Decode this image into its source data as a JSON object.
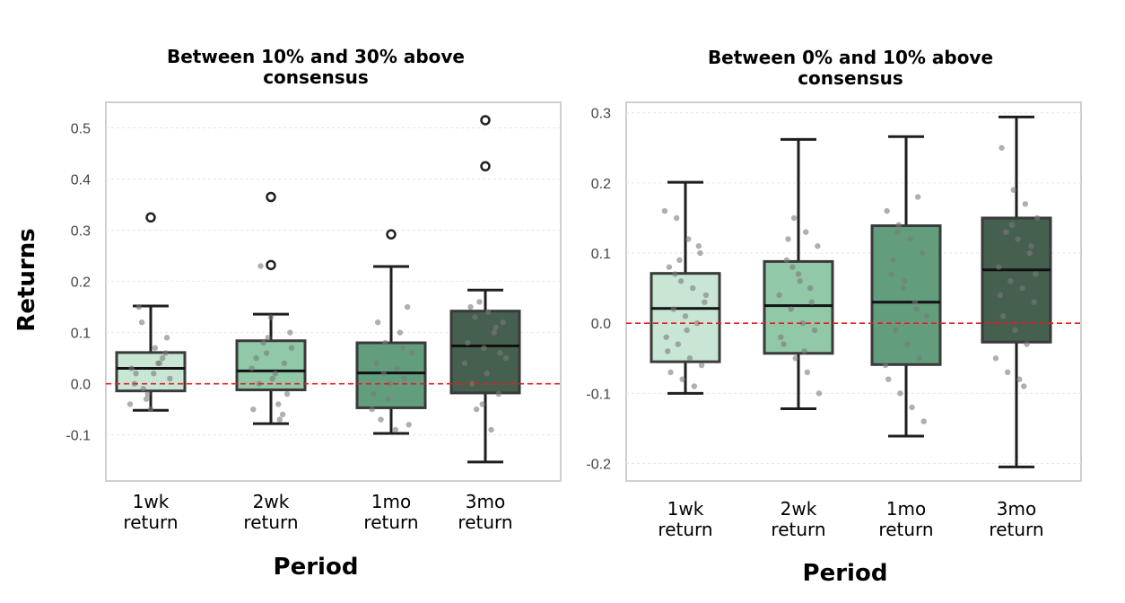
{
  "ylabel": "Returns",
  "chart_data": [
    {
      "type": "box",
      "title_lines": [
        "Between 10% and 30% above",
        "consensus"
      ],
      "xlabel": "Period",
      "ylabel": "Returns",
      "categories": [
        {
          "line1": "1wk",
          "line2": "return"
        },
        {
          "line1": "2wk",
          "line2": "return"
        },
        {
          "line1": "1mo",
          "line2": "return"
        },
        {
          "line1": "3mo",
          "line2": "return"
        }
      ],
      "yticks": [
        "0.5",
        "0.4",
        "0.3",
        "0.2",
        "0.1",
        "0.0",
        "-0.1"
      ],
      "ylim": [
        -0.19,
        0.55
      ],
      "reference_line": 0.0,
      "grid": true,
      "box_colors": [
        "#c8e6d3",
        "#91c8a8",
        "#629e7e",
        "#45604f"
      ],
      "boxes": [
        {
          "whisker_low": -0.052,
          "q1": -0.014,
          "median": 0.03,
          "q3": 0.061,
          "whisker_high": 0.152,
          "outliers": [
            0.325
          ]
        },
        {
          "whisker_low": -0.078,
          "q1": -0.012,
          "median": 0.025,
          "q3": 0.084,
          "whisker_high": 0.136,
          "outliers": [
            0.365,
            0.232
          ]
        },
        {
          "whisker_low": -0.097,
          "q1": -0.047,
          "median": 0.021,
          "q3": 0.08,
          "whisker_high": 0.229,
          "outliers": [
            0.292
          ]
        },
        {
          "whisker_low": -0.153,
          "q1": -0.018,
          "median": 0.074,
          "q3": 0.142,
          "whisker_high": 0.183,
          "outliers": [
            0.515,
            0.425
          ]
        }
      ],
      "points": [
        [
          -0.04,
          0.12,
          0.02,
          0.06,
          0.0,
          -0.03,
          0.04,
          0.01,
          0.15,
          -0.05,
          0.05,
          0.03,
          -0.01,
          0.07,
          0.09,
          0.02,
          -0.02,
          0.04
        ],
        [
          0.06,
          -0.04,
          0.1,
          0.0,
          0.13,
          -0.06,
          0.03,
          0.08,
          0.02,
          -0.02,
          0.05,
          0.09,
          -0.07,
          0.07,
          0.23,
          0.01,
          0.04,
          -0.05
        ],
        [
          0.07,
          -0.05,
          0.02,
          -0.09,
          0.15,
          0.04,
          -0.03,
          0.1,
          0.06,
          -0.07,
          0.29,
          0.01,
          -0.02,
          0.08,
          0.03,
          -0.08,
          0.12,
          0.0
        ],
        [
          0.15,
          -0.04,
          0.1,
          0.05,
          0.13,
          0.02,
          -0.02,
          0.08,
          0.16,
          -0.09,
          0.12,
          0.0,
          0.07,
          0.11,
          0.04,
          -0.05,
          0.14,
          0.06
        ]
      ]
    },
    {
      "type": "box",
      "title_lines": [
        "Between 0% and 10% above",
        "consensus"
      ],
      "xlabel": "Period",
      "ylabel": "",
      "categories": [
        {
          "line1": "1wk",
          "line2": "return"
        },
        {
          "line1": "2wk",
          "line2": "return"
        },
        {
          "line1": "1mo",
          "line2": "return"
        },
        {
          "line1": "3mo",
          "line2": "return"
        }
      ],
      "yticks": [
        "0.3",
        "0.2",
        "0.1",
        "0.0",
        "-0.1",
        "-0.2"
      ],
      "ylim": [
        -0.225,
        0.315
      ],
      "reference_line": 0.0,
      "grid": true,
      "box_colors": [
        "#c8e6d3",
        "#91c8a8",
        "#629e7e",
        "#45604f"
      ],
      "boxes": [
        {
          "whisker_low": -0.1,
          "q1": -0.055,
          "median": 0.021,
          "q3": 0.071,
          "whisker_high": 0.201,
          "outliers": []
        },
        {
          "whisker_low": -0.122,
          "q1": -0.043,
          "median": 0.025,
          "q3": 0.088,
          "whisker_high": 0.262,
          "outliers": []
        },
        {
          "whisker_low": -0.161,
          "q1": -0.059,
          "median": 0.03,
          "q3": 0.139,
          "whisker_high": 0.266,
          "outliers": []
        },
        {
          "whisker_low": -0.205,
          "q1": -0.027,
          "median": 0.076,
          "q3": 0.15,
          "whisker_high": 0.294,
          "outliers": []
        }
      ],
      "points": [
        [
          0.16,
          0.15,
          0.12,
          0.1,
          0.08,
          0.06,
          0.05,
          0.03,
          0.02,
          0.01,
          0.0,
          -0.02,
          -0.03,
          -0.05,
          -0.06,
          -0.07,
          -0.08,
          -0.09,
          0.04,
          0.07,
          -0.01,
          0.11,
          -0.04,
          0.09
        ],
        [
          0.15,
          0.13,
          0.11,
          0.09,
          0.07,
          0.05,
          0.04,
          0.02,
          0.0,
          -0.01,
          -0.03,
          -0.05,
          -0.07,
          -0.1,
          0.12,
          0.06,
          0.03,
          -0.02,
          0.08,
          -0.04
        ],
        [
          0.18,
          0.16,
          0.14,
          0.12,
          0.1,
          0.07,
          0.05,
          0.03,
          0.01,
          -0.01,
          -0.03,
          -0.05,
          -0.08,
          -0.1,
          -0.12,
          -0.14,
          0.09,
          0.06,
          0.02,
          -0.06,
          0.13
        ],
        [
          0.25,
          0.19,
          0.17,
          0.15,
          0.13,
          0.12,
          0.1,
          0.08,
          0.06,
          0.05,
          0.03,
          0.01,
          -0.01,
          -0.03,
          -0.05,
          -0.07,
          -0.08,
          0.11,
          0.04,
          0.14,
          -0.09,
          0.07
        ]
      ]
    }
  ]
}
